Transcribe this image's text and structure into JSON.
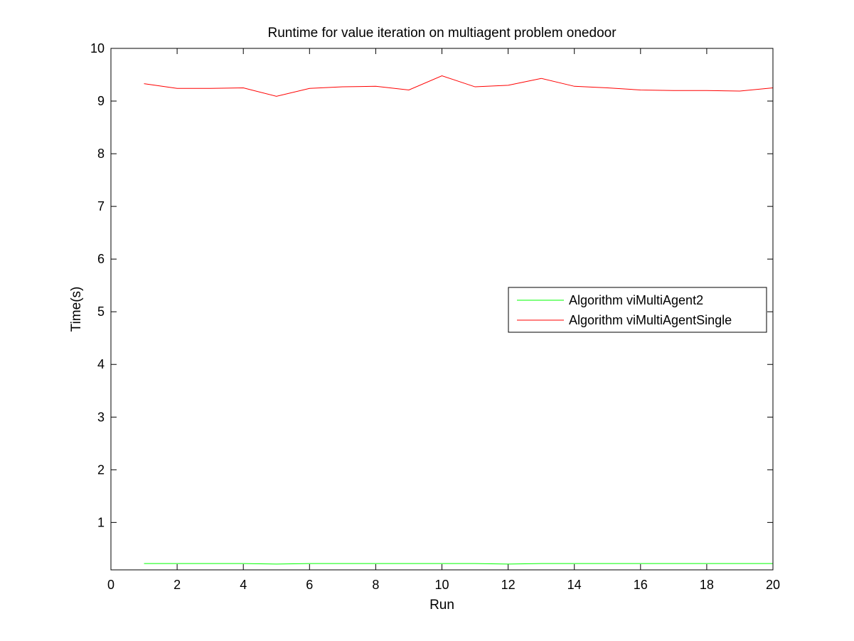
{
  "chart_data": {
    "type": "line",
    "title": "Runtime for value iteration on multiagent problem onedoor",
    "xlabel": "Run",
    "ylabel": "Time(s)",
    "xlim": [
      0,
      20
    ],
    "ylim": [
      0.1,
      10
    ],
    "xticks": [
      0,
      2,
      4,
      6,
      8,
      10,
      12,
      14,
      16,
      18,
      20
    ],
    "yticks": [
      1,
      2,
      3,
      4,
      5,
      6,
      7,
      8,
      9,
      10
    ],
    "grid": false,
    "legend_position": "right-middle",
    "x": [
      1,
      2,
      3,
      4,
      5,
      6,
      7,
      8,
      9,
      10,
      11,
      12,
      13,
      14,
      15,
      16,
      17,
      18,
      19,
      20
    ],
    "series": [
      {
        "name": "Algorithm viMultiAgent2",
        "color": "#00ff00",
        "values": [
          0.22,
          0.22,
          0.22,
          0.22,
          0.21,
          0.22,
          0.22,
          0.22,
          0.22,
          0.22,
          0.22,
          0.21,
          0.22,
          0.22,
          0.22,
          0.22,
          0.22,
          0.22,
          0.22,
          0.22
        ]
      },
      {
        "name": "Algorithm viMultiAgentSingle",
        "color": "#ff0000",
        "values": [
          9.33,
          9.24,
          9.24,
          9.25,
          9.09,
          9.24,
          9.27,
          9.28,
          9.21,
          9.48,
          9.27,
          9.3,
          9.43,
          9.28,
          9.25,
          9.21,
          9.2,
          9.2,
          9.19,
          9.25
        ]
      }
    ]
  }
}
